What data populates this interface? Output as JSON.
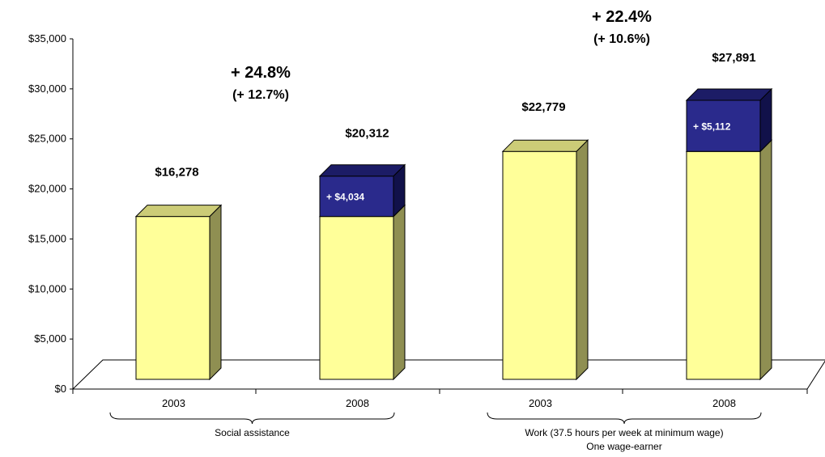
{
  "chart_data": {
    "type": "bar",
    "stacked": true,
    "three_d": true,
    "ylim": [
      0,
      35000
    ],
    "y_ticks": [
      "$0",
      "$5,000",
      "$10,000",
      "$15,000",
      "$20,000",
      "$25,000",
      "$30,000",
      "$35,000"
    ],
    "y_tick_values": [
      0,
      5000,
      10000,
      15000,
      20000,
      25000,
      30000,
      35000
    ],
    "grid": false,
    "legend": "none",
    "groups": [
      {
        "label": "Social assistance",
        "label2": "",
        "change_pct": "+ 24.8%",
        "change_pct_real": "(+ 12.7%)",
        "bars": [
          {
            "category": "2003",
            "base": 16278,
            "increase": 0,
            "total_label": "$16,278",
            "increase_label": ""
          },
          {
            "category": "2008",
            "base": 16278,
            "increase": 4034,
            "total_label": "$20,312",
            "increase_label": "+ $4,034"
          }
        ]
      },
      {
        "label": "Work (37.5 hours per week at minimum wage)",
        "label2": "One wage-earner",
        "change_pct": "+ 22.4%",
        "change_pct_real": "(+ 10.6%)",
        "bars": [
          {
            "category": "2003",
            "base": 22779,
            "increase": 0,
            "total_label": "$22,779",
            "increase_label": ""
          },
          {
            "category": "2008",
            "base": 22779,
            "increase": 5112,
            "total_label": "$27,891",
            "increase_label": "+ $5,112"
          }
        ]
      }
    ],
    "colors": {
      "base_front": "#ffff99",
      "base_top": "#cccc77",
      "base_side": "#8f8f52",
      "inc_front": "#2a2a8c",
      "inc_top": "#1c1c66",
      "inc_side": "#11114a"
    }
  }
}
